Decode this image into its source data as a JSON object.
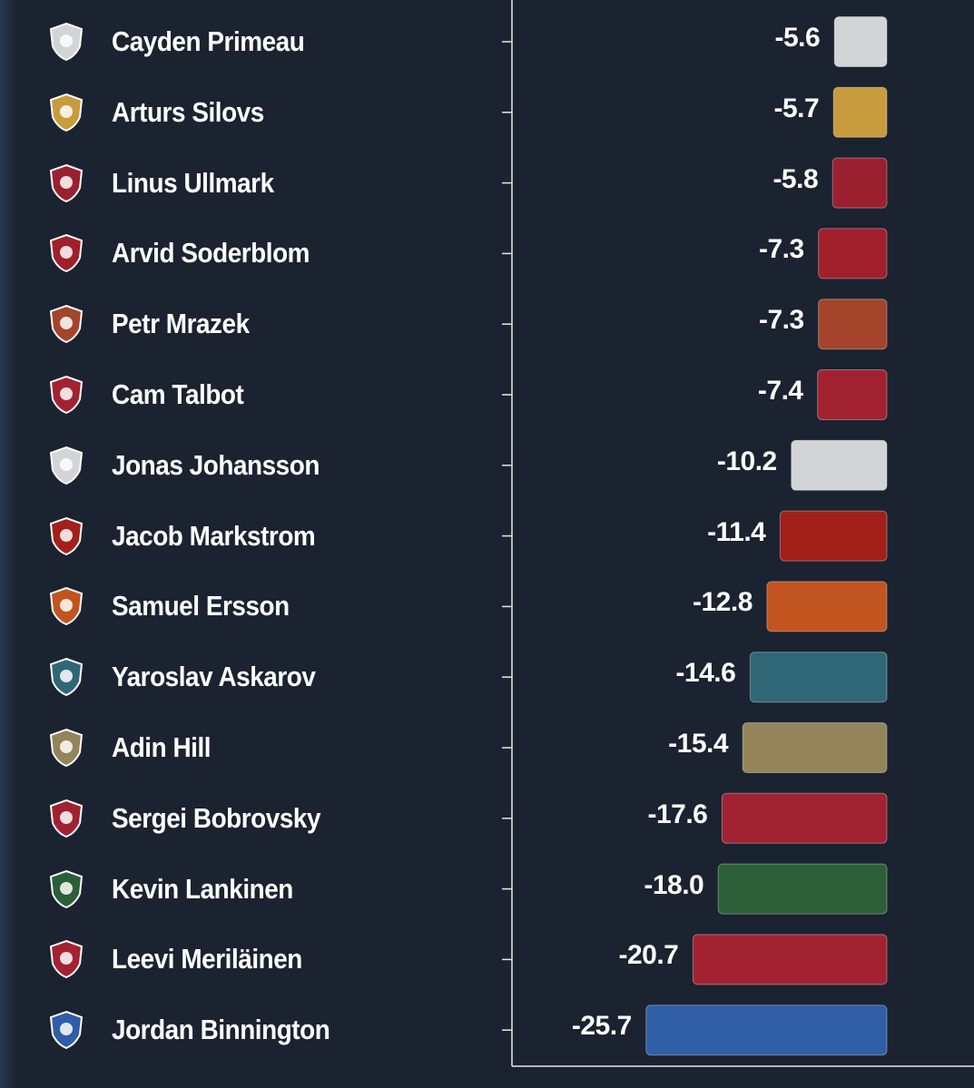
{
  "chart_data": {
    "type": "bar",
    "orientation": "horizontal",
    "title": "",
    "xlabel": "",
    "ylabel": "",
    "grid": false,
    "categories": [
      "Cayden Primeau",
      "Arturs Silovs",
      "Linus Ullmark",
      "Arvid Soderblom",
      "Petr Mrazek",
      "Cam Talbot",
      "Jonas Johansson",
      "Jacob Markstrom",
      "Samuel Ersson",
      "Yaroslav Askarov",
      "Adin Hill",
      "Sergei Bobrovsky",
      "Kevin Lankinen",
      "Leevi Meriläinen",
      "Jordan Binnington"
    ],
    "values": [
      -5.6,
      -5.7,
      -5.8,
      -7.3,
      -7.3,
      -7.4,
      -10.2,
      -11.4,
      -12.8,
      -14.6,
      -15.4,
      -17.6,
      -18.0,
      -20.7,
      -25.7
    ],
    "value_labels": [
      "-5.6",
      "-5.7",
      "-5.8",
      "-7.3",
      "-7.3",
      "-7.4",
      "-10.2",
      "-11.4",
      "-12.8",
      "-14.6",
      "-15.4",
      "-17.6",
      "-18.0",
      "-20.7",
      "-25.7"
    ],
    "colors": [
      "#d2d4d6",
      "#c89b3c",
      "#9a2030",
      "#a01f2b",
      "#a3442b",
      "#a32232",
      "#d2d4d6",
      "#a31f1a",
      "#c2541f",
      "#2f6776",
      "#94845a",
      "#a02232",
      "#2c5e38",
      "#a32232",
      "#2f5ea7"
    ],
    "team_logo_icons": [
      "maple-leafs-logo-icon",
      "penguins-logo-icon",
      "senators-logo-icon",
      "blackhawks-logo-icon",
      "ducks-logo-icon",
      "red-wings-logo-icon",
      "lightning-logo-icon",
      "devils-logo-icon",
      "flyers-logo-icon",
      "sharks-logo-icon",
      "golden-knights-logo-icon",
      "panthers-logo-icon",
      "canucks-logo-icon",
      "senators-logo-icon",
      "blues-logo-icon"
    ]
  },
  "theme": {
    "background": "#1b2230",
    "text": "#ffffff",
    "axis": "#e8e8e8"
  }
}
